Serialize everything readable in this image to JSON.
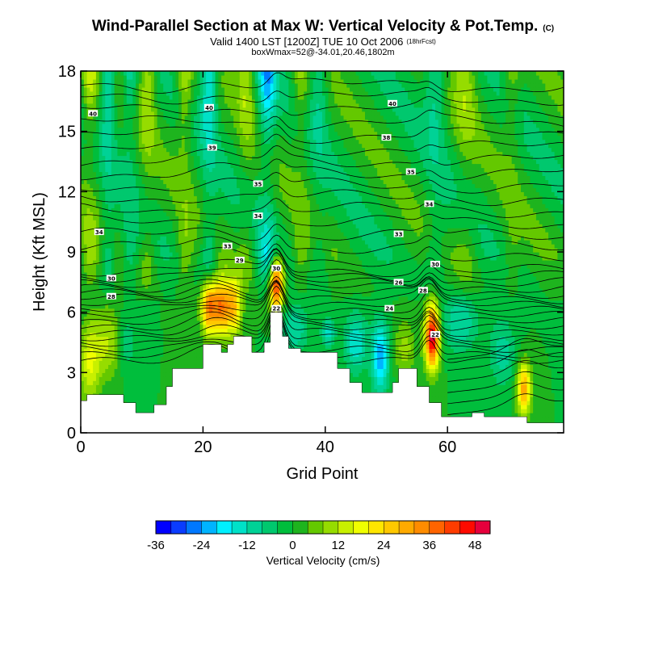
{
  "title": {
    "main": "Wind-Parallel Section at Max W: Vertical Velocity & Pot.Temp.",
    "corner_mark": "(C)",
    "valid": "Valid 1400 LST [1200Z] TUE 10 Oct 2006",
    "forecast": "(18hrFcst)",
    "box": "boxWmax=52@-34.01,20.46,1802m"
  },
  "chart_data": {
    "type": "heatmap",
    "subtype": "vertical cross-section with contour overlay",
    "xlabel": "Grid Point",
    "ylabel": "Height (Kft MSL)",
    "xlim": [
      0,
      79
    ],
    "ylim": [
      0,
      18
    ],
    "x_ticks": [
      0,
      20,
      40,
      60
    ],
    "y_ticks": [
      0,
      3,
      6,
      9,
      12,
      15,
      18
    ],
    "colorbar": {
      "label": "Vertical Velocity (cm/s)",
      "min": -36,
      "max": 52,
      "step": 4,
      "tick_labels": [
        -36,
        -24,
        -12,
        0,
        12,
        24,
        36,
        48
      ],
      "colors": [
        "#0000ff",
        "#0a3cff",
        "#0078ff",
        "#00b4ff",
        "#00f0ff",
        "#00e1c8",
        "#00d296",
        "#00c86e",
        "#00be3c",
        "#1eb41e",
        "#64c800",
        "#96dc00",
        "#c8f000",
        "#f0ff00",
        "#ffe600",
        "#ffc800",
        "#ffaa00",
        "#ff8c00",
        "#ff6400",
        "#ff3c00",
        "#ff0a00",
        "#e6003c"
      ]
    },
    "contour_field": "Potential Temperature",
    "contour_labels": [
      {
        "x": 2,
        "z": 15.9,
        "text": "40"
      },
      {
        "x": 21,
        "z": 16.2,
        "text": "40"
      },
      {
        "x": 51,
        "z": 16.4,
        "text": "40"
      },
      {
        "x": 21.5,
        "z": 14.2,
        "text": "39"
      },
      {
        "x": 50,
        "z": 14.7,
        "text": "38"
      },
      {
        "x": 29,
        "z": 12.4,
        "text": "35"
      },
      {
        "x": 54,
        "z": 13.0,
        "text": "35"
      },
      {
        "x": 29,
        "z": 10.8,
        "text": "34"
      },
      {
        "x": 57,
        "z": 11.4,
        "text": "34"
      },
      {
        "x": 3,
        "z": 10.0,
        "text": "34"
      },
      {
        "x": 24,
        "z": 9.3,
        "text": "33"
      },
      {
        "x": 52,
        "z": 9.9,
        "text": "33"
      },
      {
        "x": 26,
        "z": 8.6,
        "text": "29"
      },
      {
        "x": 58,
        "z": 8.4,
        "text": "30"
      },
      {
        "x": 5,
        "z": 7.7,
        "text": "30"
      },
      {
        "x": 52,
        "z": 7.5,
        "text": "26"
      },
      {
        "x": 5,
        "z": 6.8,
        "text": "28"
      },
      {
        "x": 50.5,
        "z": 6.2,
        "text": "24"
      },
      {
        "x": 32,
        "z": 8.2,
        "text": "30"
      },
      {
        "x": 56,
        "z": 7.1,
        "text": "28"
      },
      {
        "x": 32,
        "z": 6.2,
        "text": "22"
      },
      {
        "x": 58,
        "z": 4.9,
        "text": "22"
      }
    ],
    "terrain_profile": {
      "x": [
        0,
        1,
        1,
        7,
        7,
        9,
        9,
        12,
        12,
        14,
        14,
        15,
        15,
        20,
        20,
        23,
        23,
        24,
        24,
        25,
        25,
        28,
        28,
        30,
        30,
        31,
        31,
        33,
        33,
        34,
        34,
        36,
        36,
        42,
        42,
        44,
        44,
        46,
        46,
        51,
        51,
        52,
        52,
        55,
        55,
        57,
        57,
        59,
        59,
        64,
        64,
        66,
        66,
        73,
        73,
        79
      ],
      "z": [
        1.6,
        1.6,
        1.9,
        1.9,
        1.5,
        1.5,
        1.0,
        1.0,
        1.4,
        1.4,
        2.3,
        2.3,
        3.2,
        3.2,
        4.4,
        4.4,
        4.0,
        4.0,
        4.4,
        4.4,
        4.8,
        4.8,
        4.0,
        4.0,
        4.5,
        4.5,
        6.0,
        6.0,
        4.8,
        4.8,
        4.2,
        4.2,
        4.0,
        4.0,
        3.2,
        3.2,
        2.5,
        2.5,
        2.0,
        2.0,
        2.5,
        2.5,
        3.2,
        3.2,
        2.3,
        2.3,
        1.5,
        1.5,
        0.8,
        0.8,
        1.0,
        1.0,
        0.8,
        0.8,
        0.5,
        0.5
      ]
    }
  }
}
